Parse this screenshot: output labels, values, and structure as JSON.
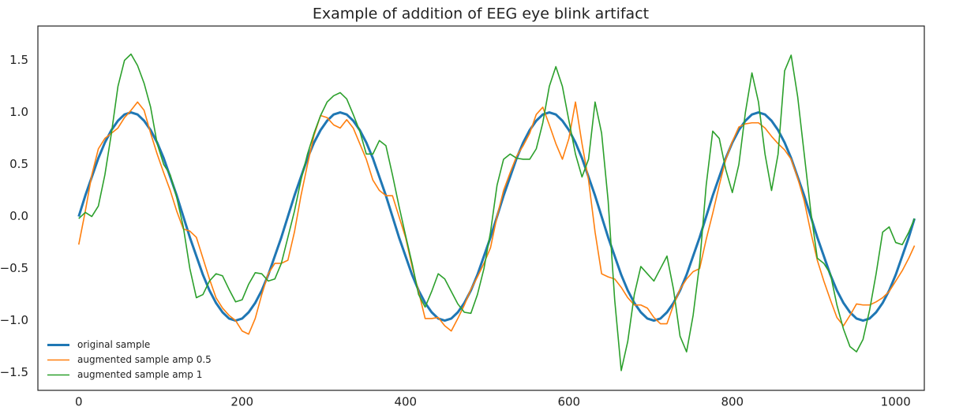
{
  "chart_data": {
    "type": "line",
    "title": "Example of addition of EEG eye blink artifact",
    "x": [
      0,
      8,
      16,
      24,
      32,
      40,
      48,
      56,
      64,
      72,
      80,
      88,
      96,
      104,
      112,
      120,
      128,
      136,
      144,
      152,
      160,
      168,
      176,
      184,
      192,
      200,
      208,
      216,
      224,
      232,
      240,
      248,
      256,
      264,
      272,
      280,
      288,
      296,
      304,
      312,
      320,
      328,
      336,
      344,
      352,
      360,
      368,
      376,
      384,
      392,
      400,
      408,
      416,
      424,
      432,
      440,
      448,
      456,
      464,
      472,
      480,
      488,
      496,
      504,
      512,
      520,
      528,
      536,
      544,
      552,
      560,
      568,
      576,
      584,
      592,
      600,
      608,
      616,
      624,
      632,
      640,
      648,
      656,
      664,
      672,
      680,
      688,
      696,
      704,
      712,
      720,
      728,
      736,
      744,
      752,
      760,
      768,
      776,
      784,
      792,
      800,
      808,
      816,
      824,
      832,
      840,
      848,
      856,
      864,
      872,
      880,
      888,
      896,
      904,
      912,
      920,
      928,
      936,
      944,
      952,
      960,
      968,
      976,
      984,
      992,
      1000,
      1008,
      1016,
      1023
    ],
    "series": [
      {
        "name": "original sample",
        "color": "#1f77b4",
        "width": 3,
        "values": [
          0,
          0.2,
          0.38,
          0.56,
          0.71,
          0.83,
          0.92,
          0.98,
          1,
          0.98,
          0.92,
          0.83,
          0.71,
          0.56,
          0.38,
          0.2,
          0,
          -0.2,
          -0.38,
          -0.56,
          -0.71,
          -0.83,
          -0.92,
          -0.98,
          -1,
          -0.98,
          -0.92,
          -0.83,
          -0.71,
          -0.56,
          -0.38,
          -0.2,
          0,
          0.2,
          0.38,
          0.56,
          0.71,
          0.83,
          0.92,
          0.98,
          1,
          0.98,
          0.92,
          0.83,
          0.71,
          0.56,
          0.38,
          0.2,
          0,
          -0.2,
          -0.38,
          -0.56,
          -0.71,
          -0.83,
          -0.92,
          -0.98,
          -1,
          -0.98,
          -0.92,
          -0.83,
          -0.71,
          -0.56,
          -0.38,
          -0.2,
          0,
          0.2,
          0.38,
          0.56,
          0.71,
          0.83,
          0.92,
          0.98,
          1,
          0.98,
          0.92,
          0.83,
          0.71,
          0.56,
          0.38,
          0.2,
          0,
          -0.2,
          -0.38,
          -0.56,
          -0.71,
          -0.83,
          -0.92,
          -0.98,
          -1,
          -0.98,
          -0.92,
          -0.83,
          -0.71,
          -0.56,
          -0.38,
          -0.2,
          0,
          0.2,
          0.38,
          0.56,
          0.71,
          0.83,
          0.92,
          0.98,
          1,
          0.98,
          0.92,
          0.83,
          0.71,
          0.56,
          0.38,
          0.2,
          0,
          -0.2,
          -0.38,
          -0.56,
          -0.71,
          -0.83,
          -0.92,
          -0.98,
          -1,
          -0.98,
          -0.92,
          -0.83,
          -0.71,
          -0.56,
          -0.38,
          -0.2,
          -0.02
        ]
      },
      {
        "name": "augmented sample amp 0.5",
        "color": "#ff7f0e",
        "width": 1.6,
        "values": [
          -0.27,
          0.05,
          0.4,
          0.65,
          0.75,
          0.8,
          0.85,
          0.95,
          1.02,
          1.1,
          1.02,
          0.8,
          0.6,
          0.42,
          0.25,
          0.05,
          -0.12,
          -0.14,
          -0.2,
          -0.4,
          -0.6,
          -0.78,
          -0.88,
          -0.95,
          -1.0,
          -1.1,
          -1.13,
          -0.98,
          -0.75,
          -0.55,
          -0.45,
          -0.45,
          -0.42,
          -0.15,
          0.2,
          0.5,
          0.78,
          0.97,
          0.95,
          0.88,
          0.85,
          0.93,
          0.85,
          0.7,
          0.55,
          0.35,
          0.25,
          0.2,
          0.2,
          0.0,
          -0.2,
          -0.48,
          -0.72,
          -0.98,
          -0.98,
          -0.97,
          -1.05,
          -1.1,
          -0.98,
          -0.85,
          -0.7,
          -0.58,
          -0.45,
          -0.3,
          0.0,
          0.25,
          0.42,
          0.58,
          0.68,
          0.8,
          0.98,
          1.05,
          0.88,
          0.7,
          0.55,
          0.75,
          1.1,
          0.7,
          0.35,
          -0.15,
          -0.55,
          -0.58,
          -0.6,
          -0.68,
          -0.78,
          -0.85,
          -0.85,
          -0.88,
          -0.97,
          -1.03,
          -1.03,
          -0.85,
          -0.7,
          -0.6,
          -0.53,
          -0.5,
          -0.22,
          0.03,
          0.3,
          0.55,
          0.72,
          0.86,
          0.89,
          0.9,
          0.9,
          0.85,
          0.77,
          0.7,
          0.64,
          0.55,
          0.37,
          0.15,
          -0.15,
          -0.42,
          -0.62,
          -0.8,
          -0.97,
          -1.05,
          -0.95,
          -0.84,
          -0.85,
          -0.85,
          -0.82,
          -0.78,
          -0.72,
          -0.62,
          -0.52,
          -0.4,
          -0.28
        ]
      },
      {
        "name": "augmented sample amp 1",
        "color": "#2ca02c",
        "width": 1.6,
        "values": [
          -0.02,
          0.04,
          0.0,
          0.1,
          0.4,
          0.8,
          1.25,
          1.5,
          1.56,
          1.45,
          1.28,
          1.05,
          0.7,
          0.5,
          0.4,
          0.18,
          -0.1,
          -0.5,
          -0.78,
          -0.75,
          -0.62,
          -0.55,
          -0.57,
          -0.7,
          -0.82,
          -0.8,
          -0.65,
          -0.54,
          -0.55,
          -0.62,
          -0.6,
          -0.45,
          -0.2,
          0.05,
          0.35,
          0.6,
          0.8,
          0.97,
          1.1,
          1.16,
          1.19,
          1.13,
          0.98,
          0.82,
          0.6,
          0.6,
          0.73,
          0.68,
          0.4,
          0.1,
          -0.18,
          -0.45,
          -0.75,
          -0.87,
          -0.72,
          -0.55,
          -0.6,
          -0.72,
          -0.84,
          -0.92,
          -0.93,
          -0.75,
          -0.5,
          -0.15,
          0.3,
          0.55,
          0.6,
          0.56,
          0.55,
          0.55,
          0.65,
          0.9,
          1.25,
          1.44,
          1.25,
          0.92,
          0.6,
          0.38,
          0.55,
          1.1,
          0.8,
          0.15,
          -0.8,
          -1.48,
          -1.2,
          -0.75,
          -0.48,
          -0.55,
          -0.62,
          -0.5,
          -0.38,
          -0.7,
          -1.15,
          -1.3,
          -0.95,
          -0.45,
          0.3,
          0.82,
          0.75,
          0.45,
          0.23,
          0.5,
          1.0,
          1.38,
          1.1,
          0.6,
          0.25,
          0.6,
          1.4,
          1.55,
          1.15,
          0.6,
          0.05,
          -0.4,
          -0.45,
          -0.55,
          -0.85,
          -1.08,
          -1.25,
          -1.3,
          -1.18,
          -0.9,
          -0.55,
          -0.15,
          -0.1,
          -0.25,
          -0.27,
          -0.15,
          -0.02
        ]
      }
    ],
    "xlim": [
      -50,
      1035
    ],
    "ylim": [
      -1.67,
      1.83
    ],
    "xticks": [
      0,
      200,
      400,
      600,
      800,
      1000
    ],
    "yticks": [
      {
        "value": -1.5,
        "label": "−1.5"
      },
      {
        "value": -1.0,
        "label": "−1.0"
      },
      {
        "value": -0.5,
        "label": "−0.5"
      },
      {
        "value": 0,
        "label": "0.0"
      },
      {
        "value": 0.5,
        "label": "0.5"
      },
      {
        "value": 1.0,
        "label": "1.0"
      },
      {
        "value": 1.5,
        "label": "1.5"
      }
    ],
    "grid": false,
    "legend": "lower left"
  }
}
